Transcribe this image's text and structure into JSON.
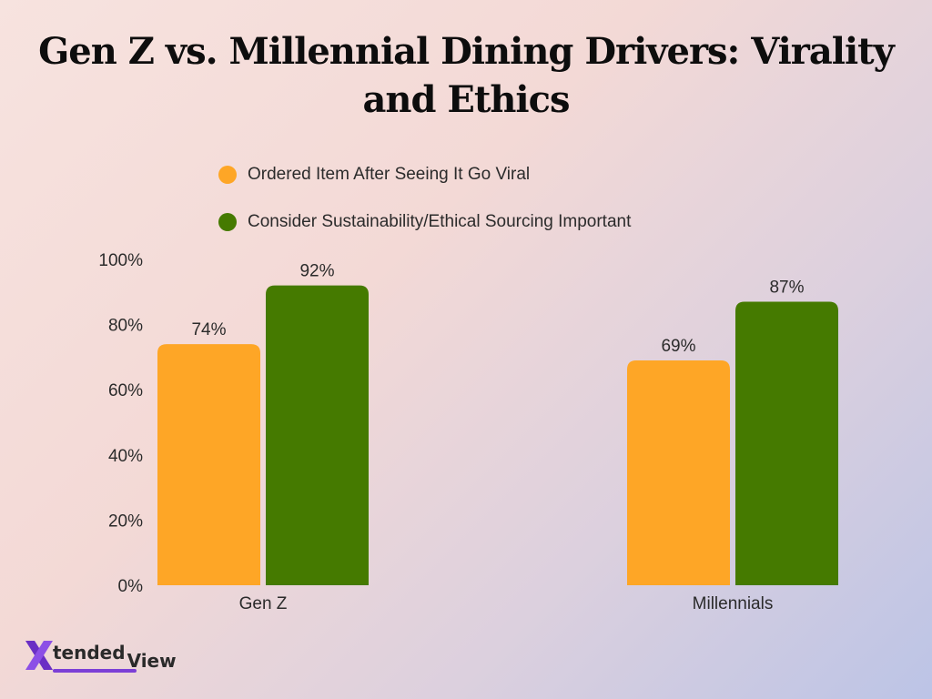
{
  "chart_data": {
    "type": "bar",
    "title": "Gen Z vs. Millennial Dining Drivers: Virality and Ethics",
    "categories": [
      "Gen Z",
      "Millennials"
    ],
    "series": [
      {
        "name": "Ordered Item After Seeing It Go Viral",
        "values": [
          74,
          69
        ],
        "color": "#fea626"
      },
      {
        "name": "Consider Sustainability/Ethical Sourcing Important",
        "values": [
          92,
          87
        ],
        "color": "#457a00"
      }
    ],
    "data_labels": [
      [
        "74%",
        "69%"
      ],
      [
        "92%",
        "87%"
      ]
    ],
    "yticks": [
      "0%",
      "20%",
      "40%",
      "60%",
      "80%",
      "100%"
    ],
    "ylim": [
      0,
      100
    ],
    "xlabel": "",
    "ylabel": "",
    "grid": false,
    "legend_position": "top"
  },
  "logo": {
    "text_part1": "tended",
    "text_part2": "View"
  },
  "colors": {
    "logo_mark": "#6a2fc4",
    "logo_underline": "#7c3fd6"
  }
}
